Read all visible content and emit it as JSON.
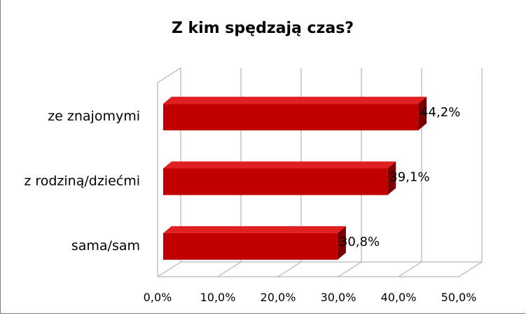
{
  "chart_data": {
    "type": "bar",
    "orientation": "horizontal",
    "style": "3d",
    "title": "Z kim spędzają czas?",
    "categories": [
      "ze znajomymi",
      "z rodziną/dziećmi",
      "sama/sam"
    ],
    "values": [
      44.2,
      39.1,
      30.8
    ],
    "value_labels": [
      "44,2%",
      "39,1%",
      "30,8%"
    ],
    "xlim": [
      0,
      50
    ],
    "ticks": [
      0,
      10,
      20,
      30,
      40,
      50
    ],
    "tick_labels": [
      "0,0%",
      "10,0%",
      "20,0%",
      "30,0%",
      "40,0%",
      "50,0%"
    ],
    "grid": true,
    "legend": "none",
    "colors": {
      "bar_front": "#c00000",
      "bar_top": "#e02020",
      "bar_side": "#7a0000",
      "grid": "#a6a6a6",
      "text": "#000000"
    }
  }
}
